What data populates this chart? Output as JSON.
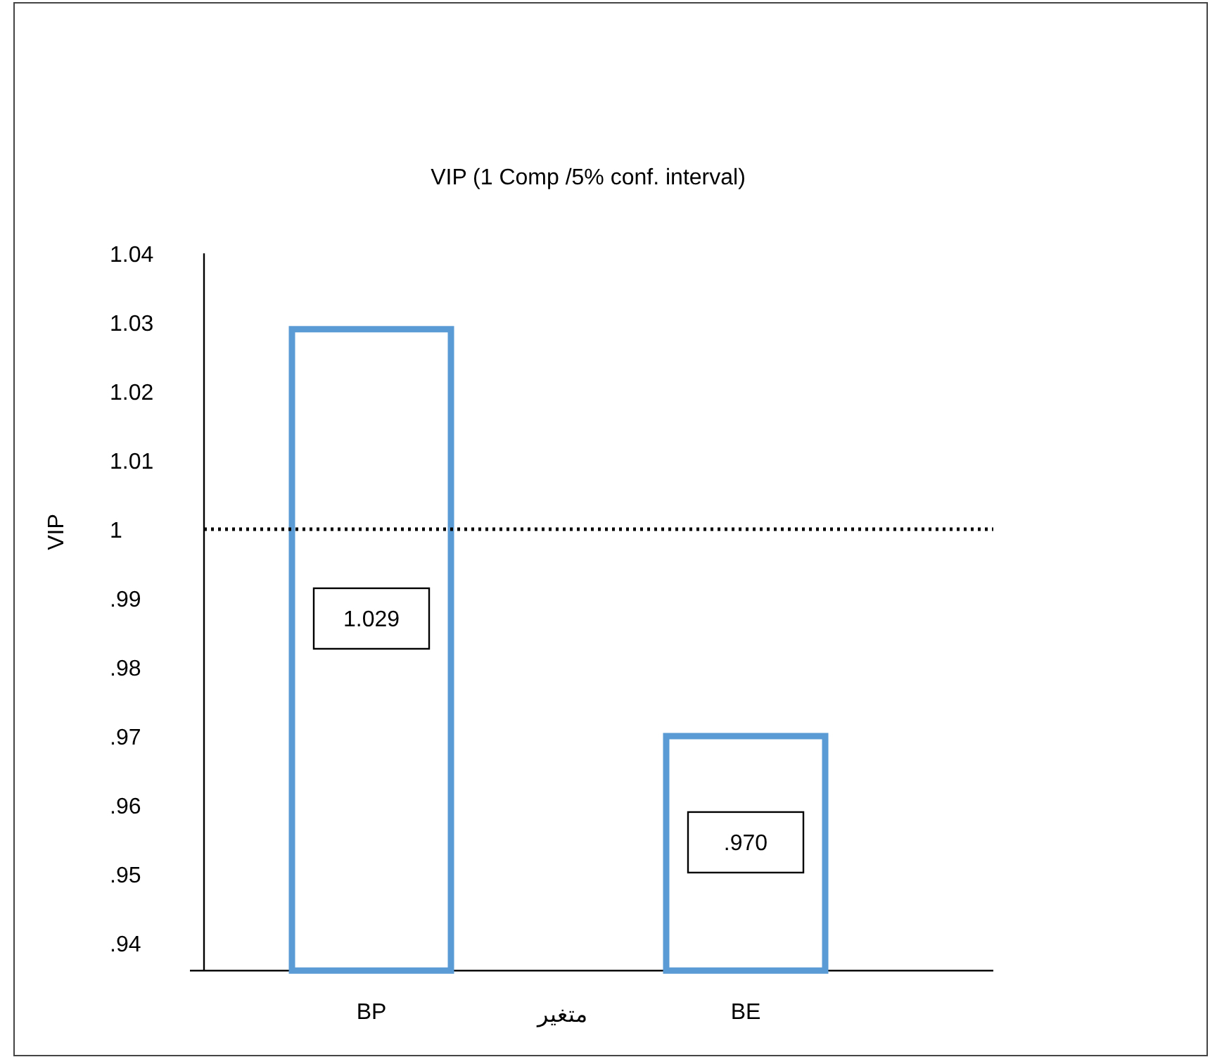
{
  "chart_data": {
    "type": "bar",
    "title": "VIP (1 Comp /5% conf. interval)",
    "xlabel": "متغير",
    "ylabel": "VIP",
    "categories": [
      "BP",
      "BE"
    ],
    "values": [
      1.029,
      0.97
    ],
    "value_labels": [
      "1.029",
      ".970"
    ],
    "color": "#5b9bd5",
    "ylim": [
      0.936,
      1.04
    ],
    "yticks": [
      {
        "value": 0.94,
        "label": ".94"
      },
      {
        "value": 0.95,
        "label": ".95"
      },
      {
        "value": 0.96,
        "label": ".96"
      },
      {
        "value": 0.97,
        "label": ".97"
      },
      {
        "value": 0.98,
        "label": ".98"
      },
      {
        "value": 0.99,
        "label": ".99"
      },
      1,
      1.01,
      1.02,
      1.03,
      1.04
    ],
    "ref_lines": [
      {
        "axis": "y",
        "value": 1,
        "line_style": "dotted",
        "color": "#000000"
      }
    ],
    "grid": false
  }
}
